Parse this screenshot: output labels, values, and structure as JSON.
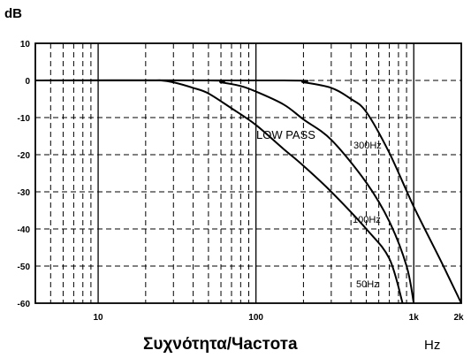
{
  "chart_data": {
    "type": "line",
    "title": "",
    "ylabel": "dB",
    "xlabel": "Συχνότητα/Частота",
    "xunit": "Hz",
    "xscale": "log",
    "xlim": [
      4,
      2000
    ],
    "ylim": [
      -60,
      10
    ],
    "x_ticks": [
      {
        "value": 10,
        "label": "10"
      },
      {
        "value": 100,
        "label": "100"
      },
      {
        "value": 1000,
        "label": "1k"
      },
      {
        "value": 2000,
        "label": "2k"
      }
    ],
    "y_ticks": [
      {
        "value": 10,
        "label": "10"
      },
      {
        "value": 0,
        "label": "0"
      },
      {
        "value": -10,
        "label": "-10"
      },
      {
        "value": -20,
        "label": "-20"
      },
      {
        "value": -30,
        "label": "-30"
      },
      {
        "value": -40,
        "label": "-40"
      },
      {
        "value": -50,
        "label": "-50"
      },
      {
        "value": -60,
        "label": "-60"
      }
    ],
    "grid": true,
    "annotation": "LOW PASS",
    "series": [
      {
        "name": "50Hz",
        "x": [
          4,
          20,
          25,
          30,
          40,
          50,
          70,
          100,
          150,
          200,
          300,
          500,
          700,
          850
        ],
        "y": [
          0,
          0,
          0,
          -0.5,
          -2,
          -3.5,
          -7.5,
          -12,
          -18.5,
          -23,
          -30,
          -40,
          -48,
          -60
        ]
      },
      {
        "name": "100Hz",
        "x": [
          4,
          50,
          60,
          80,
          100,
          150,
          200,
          300,
          500,
          700,
          900,
          1000
        ],
        "y": [
          0,
          0,
          -0.5,
          -1.5,
          -3,
          -6.5,
          -10.5,
          -16,
          -27.5,
          -38,
          -50,
          -60
        ]
      },
      {
        "name": "300Hz",
        "x": [
          4,
          150,
          200,
          300,
          400,
          500,
          700,
          1000,
          1500,
          2000
        ],
        "y": [
          0,
          0,
          -0.5,
          -2,
          -5,
          -8.5,
          -19.5,
          -34,
          -49,
          -60
        ]
      }
    ]
  }
}
